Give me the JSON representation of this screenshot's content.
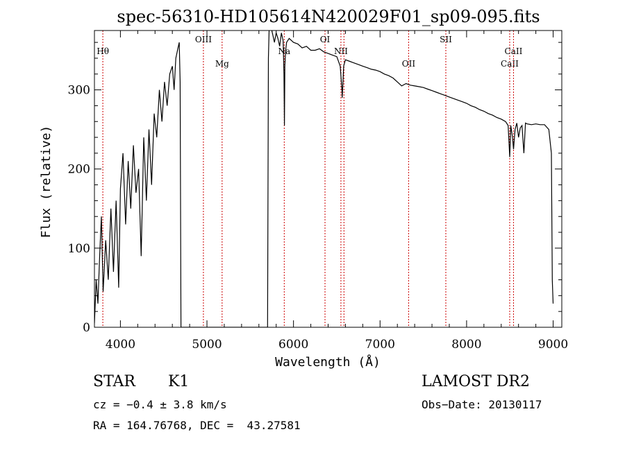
{
  "chart_data": {
    "type": "line",
    "title": "spec-56310-HD105614N420029F01_sp09-095.fits",
    "xlabel": "Wavelength (Å)",
    "ylabel": "Flux (relative)",
    "xlim": [
      3700,
      9100
    ],
    "ylim": [
      0,
      375
    ],
    "xticks": [
      4000,
      5000,
      6000,
      7000,
      8000,
      9000
    ],
    "yticks": [
      0,
      100,
      200,
      300
    ],
    "grid": false,
    "line_color": "#000000",
    "marker_color": "#cc0000",
    "series": [
      {
        "x": [
          3700,
          3720,
          3740,
          3760,
          3780,
          3800,
          3830,
          3860,
          3890,
          3920,
          3950,
          3980,
          4000,
          4030,
          4060,
          4090,
          4120,
          4150,
          4180,
          4210,
          4240,
          4270,
          4300,
          4330,
          4360,
          4390,
          4420,
          4450,
          4480,
          4510,
          4540,
          4570,
          4600,
          4620,
          4640,
          4660,
          4680,
          4690,
          4700,
          4710,
          5700,
          5710,
          5720,
          5730,
          5740,
          5760,
          5780,
          5800,
          5820,
          5840,
          5860,
          5880,
          5890,
          5895,
          5900,
          5910,
          5920,
          5950,
          6000,
          6050,
          6100,
          6150,
          6200,
          6250,
          6300,
          6350,
          6400,
          6450,
          6500,
          6540,
          6560,
          6563,
          6580,
          6600,
          6650,
          6700,
          6750,
          6800,
          6850,
          6900,
          6950,
          7000,
          7050,
          7100,
          7150,
          7200,
          7250,
          7300,
          7350,
          7400,
          7450,
          7500,
          7550,
          7600,
          7650,
          7700,
          7750,
          7800,
          7850,
          7900,
          7950,
          8000,
          8050,
          8100,
          8150,
          8200,
          8250,
          8300,
          8350,
          8400,
          8450,
          8480,
          8498,
          8510,
          8530,
          8542,
          8560,
          8580,
          8600,
          8620,
          8640,
          8662,
          8680,
          8700,
          8750,
          8800,
          8850,
          8900,
          8950,
          8980,
          8990,
          9000
        ],
        "y": [
          5,
          60,
          30,
          90,
          140,
          45,
          110,
          60,
          150,
          70,
          160,
          50,
          175,
          220,
          130,
          210,
          150,
          230,
          170,
          200,
          90,
          240,
          160,
          250,
          180,
          270,
          240,
          300,
          260,
          310,
          280,
          320,
          330,
          300,
          340,
          350,
          360,
          310,
          0,
          0,
          0,
          340,
          385,
          375,
          380,
          370,
          360,
          372,
          365,
          355,
          372,
          362,
          320,
          255,
          330,
          350,
          360,
          365,
          360,
          358,
          353,
          355,
          350,
          350,
          352,
          348,
          346,
          344,
          342,
          330,
          300,
          290,
          330,
          338,
          336,
          334,
          332,
          330,
          328,
          326,
          325,
          323,
          320,
          318,
          315,
          310,
          305,
          308,
          306,
          305,
          304,
          303,
          301,
          299,
          297,
          295,
          293,
          291,
          289,
          287,
          285,
          283,
          280,
          278,
          275,
          273,
          270,
          268,
          265,
          263,
          260,
          255,
          215,
          255,
          240,
          225,
          250,
          258,
          240,
          252,
          255,
          220,
          258,
          257,
          256,
          257,
          256,
          256,
          250,
          220,
          60,
          30
        ]
      }
    ],
    "line_markers": [
      {
        "label": "Hθ",
        "x": 3797,
        "label_row": "high"
      },
      {
        "label": "OIII",
        "x": 4959,
        "label_row": "top"
      },
      {
        "label": "Mg",
        "x": 5175,
        "label_row": "low"
      },
      {
        "label": "Na",
        "x": 5893,
        "label_row": "high"
      },
      {
        "label": "OI",
        "x": 6364,
        "label_row": "top"
      },
      {
        "label": "NII",
        "x": 6548,
        "label_row": "high"
      },
      {
        "label": "NII",
        "x": 6583,
        "label_row": "none"
      },
      {
        "label": "OII",
        "x": 7330,
        "label_row": "low"
      },
      {
        "label": "SII",
        "x": 7760,
        "label_row": "top"
      },
      {
        "label": "CaII",
        "x": 8498,
        "label_row": "low"
      },
      {
        "label": "CaII",
        "x": 8542,
        "label_row": "high"
      }
    ]
  },
  "footer": {
    "object_class": "STAR",
    "subclass": "K1",
    "survey": "LAMOST DR2",
    "cz": "cz = −0.4 ± 3.8 km/s",
    "obs_date": "Obs−Date: 20130117",
    "coords": "RA = 164.76768, DEC =  43.27581"
  }
}
